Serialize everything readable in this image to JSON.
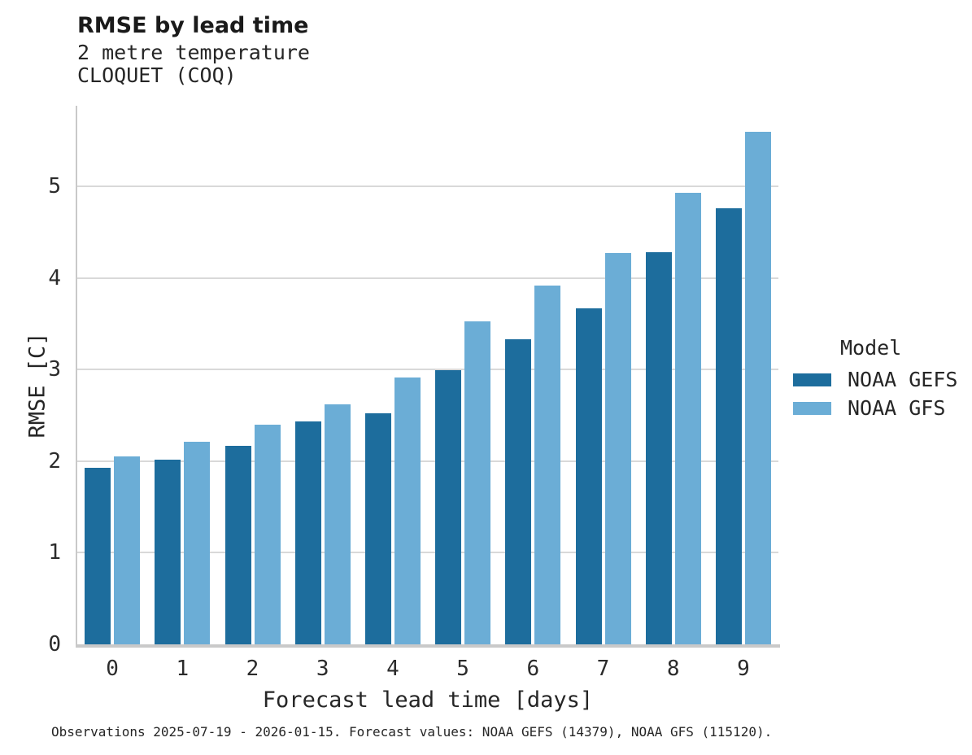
{
  "header": {
    "title": "RMSE by lead time",
    "subtitle_line1": "2 metre temperature",
    "subtitle_line2": "CLOQUET (COQ)"
  },
  "chart_data": {
    "type": "bar",
    "title": "RMSE by lead time",
    "subtitle": [
      "2 metre temperature",
      "CLOQUET (COQ)"
    ],
    "xlabel": "Forecast lead time [days]",
    "ylabel": "RMSE [C]",
    "categories": [
      "0",
      "1",
      "2",
      "3",
      "4",
      "5",
      "6",
      "7",
      "8",
      "9"
    ],
    "series": [
      {
        "name": "NOAA GEFS",
        "color": "#1d6d9d",
        "values": [
          1.93,
          2.02,
          2.17,
          2.43,
          2.52,
          2.99,
          3.33,
          3.67,
          4.28,
          4.76
        ]
      },
      {
        "name": "NOAA GFS",
        "color": "#6badd6",
        "values": [
          2.05,
          2.21,
          2.4,
          2.62,
          2.91,
          3.53,
          3.92,
          4.27,
          4.93,
          5.6
        ]
      }
    ],
    "yticks": [
      0,
      1,
      2,
      3,
      4,
      5
    ],
    "ylim": [
      0,
      5.88
    ],
    "grid": "horizontal",
    "legend_title": "Model",
    "legend_position": "right"
  },
  "legend": {
    "title": "Model",
    "items": [
      {
        "label": "NOAA GEFS",
        "color": "#1d6d9d"
      },
      {
        "label": "NOAA GFS",
        "color": "#6badd6"
      }
    ]
  },
  "footer": {
    "note": "Observations 2025-07-19 - 2026-01-15. Forecast values: NOAA GEFS (14379), NOAA GFS (115120)."
  },
  "colors": {
    "gefs": "#1d6d9d",
    "gfs": "#6badd6",
    "gridline": "#d9d9d9",
    "axis": "#c9c9c9",
    "text": "#262626",
    "background": "#ffffff"
  }
}
